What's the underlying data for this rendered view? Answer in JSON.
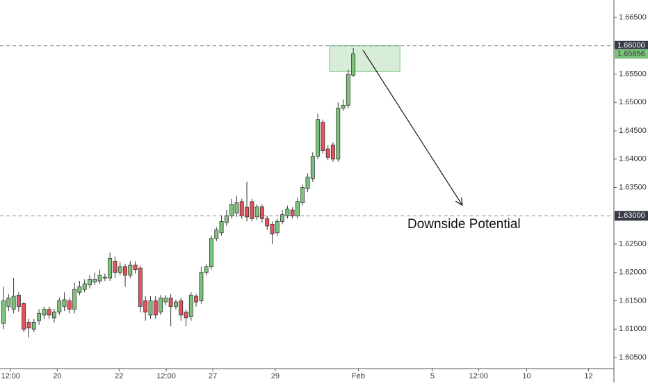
{
  "chart_data": {
    "type": "candlestick",
    "x": [
      0,
      1,
      2,
      3,
      4,
      5,
      6,
      7,
      8,
      9,
      10,
      11,
      12,
      13,
      14,
      15,
      16,
      17,
      18,
      19,
      20,
      21,
      22,
      23,
      24,
      25,
      26,
      27,
      28,
      29,
      30,
      31,
      32,
      33,
      34,
      35,
      36,
      37,
      38,
      39,
      40,
      41,
      42,
      43,
      44,
      45,
      46,
      47,
      48,
      49,
      50,
      51,
      52,
      53,
      54,
      55,
      56,
      57,
      58,
      59,
      60,
      61,
      62,
      63,
      64,
      65,
      66,
      67,
      68,
      69
    ],
    "open": [
      1.611,
      1.614,
      1.6135,
      1.616,
      1.6145,
      1.6112,
      1.61,
      1.6115,
      1.6125,
      1.6135,
      1.612,
      1.613,
      1.614,
      1.615,
      1.6135,
      1.6165,
      1.617,
      1.6178,
      1.6183,
      1.6185,
      1.619,
      1.619,
      1.622,
      1.62,
      1.621,
      1.6195,
      1.6213,
      1.6208,
      1.615,
      1.6125,
      1.615,
      1.613,
      1.6148,
      1.6155,
      1.614,
      1.615,
      1.613,
      1.6122,
      1.6158,
      1.615,
      1.62,
      1.621,
      1.626,
      1.627,
      1.6288,
      1.63,
      1.6305,
      1.6325,
      1.6315,
      1.6325,
      1.6298,
      1.6316,
      1.6295,
      1.6285,
      1.627,
      1.629,
      1.63,
      1.631,
      1.63,
      1.6323,
      1.6348,
      1.6366,
      1.6405,
      1.6465,
      1.6418,
      1.6425,
      1.64,
      1.649,
      1.6495,
      1.6548
    ],
    "high": [
      1.6175,
      1.6162,
      1.619,
      1.6165,
      1.6148,
      1.6118,
      1.6118,
      1.6135,
      1.614,
      1.614,
      1.6136,
      1.6156,
      1.6165,
      1.6155,
      1.6182,
      1.6185,
      1.6188,
      1.6195,
      1.62,
      1.6205,
      1.6198,
      1.6235,
      1.6228,
      1.6218,
      1.6215,
      1.622,
      1.622,
      1.6212,
      1.6158,
      1.6158,
      1.6158,
      1.616,
      1.616,
      1.6162,
      1.6152,
      1.6155,
      1.6135,
      1.6165,
      1.6162,
      1.621,
      1.6215,
      1.6265,
      1.628,
      1.63,
      1.631,
      1.633,
      1.6335,
      1.633,
      1.636,
      1.633,
      1.632,
      1.632,
      1.63,
      1.629,
      1.6295,
      1.631,
      1.6318,
      1.6315,
      1.6332,
      1.6355,
      1.6375,
      1.6412,
      1.648,
      1.647,
      1.6425,
      1.643,
      1.65,
      1.6505,
      1.6558,
      1.6596
    ],
    "low": [
      1.61,
      1.6132,
      1.6128,
      1.613,
      1.6095,
      1.6085,
      1.6095,
      1.6108,
      1.6118,
      1.6118,
      1.6112,
      1.6125,
      1.6132,
      1.6128,
      1.6128,
      1.616,
      1.6165,
      1.6172,
      1.6178,
      1.618,
      1.6185,
      1.6185,
      1.619,
      1.6195,
      1.6175,
      1.619,
      1.6198,
      1.613,
      1.6115,
      1.6118,
      1.6118,
      1.6125,
      1.6142,
      1.6105,
      1.6135,
      1.6115,
      1.6105,
      1.6115,
      1.614,
      1.6145,
      1.6195,
      1.6205,
      1.6255,
      1.6265,
      1.6282,
      1.6295,
      1.6298,
      1.6295,
      1.629,
      1.629,
      1.6292,
      1.6288,
      1.6275,
      1.625,
      1.6265,
      1.6285,
      1.6295,
      1.6295,
      1.6295,
      1.6318,
      1.6342,
      1.636,
      1.64,
      1.641,
      1.6398,
      1.6395,
      1.6395,
      1.6485,
      1.649,
      1.6545
    ],
    "close": [
      1.615,
      1.6155,
      1.6158,
      1.614,
      1.61,
      1.6102,
      1.6112,
      1.6128,
      1.6135,
      1.6125,
      1.613,
      1.615,
      1.6152,
      1.6135,
      1.617,
      1.6175,
      1.618,
      1.6188,
      1.6188,
      1.6195,
      1.6192,
      1.6225,
      1.62,
      1.621,
      1.6195,
      1.6213,
      1.6205,
      1.614,
      1.613,
      1.615,
      1.6125,
      1.6155,
      1.6155,
      1.614,
      1.6148,
      1.6125,
      1.612,
      1.616,
      1.6148,
      1.62,
      1.621,
      1.626,
      1.6275,
      1.629,
      1.63,
      1.632,
      1.6323,
      1.63,
      1.6298,
      1.6295,
      1.6316,
      1.6295,
      1.6282,
      1.6268,
      1.629,
      1.6302,
      1.6312,
      1.63,
      1.6325,
      1.635,
      1.6368,
      1.6405,
      1.647,
      1.6415,
      1.6403,
      1.64,
      1.649,
      1.6495,
      1.655,
      1.65856
    ],
    "up_color": "#7cc47c",
    "down_color": "#e4535a",
    "xlim": [
      -0.69,
      120.0
    ],
    "ylim": [
      1.60304,
      1.66807
    ],
    "xticks": [
      {
        "value": 1.4,
        "label": "12:00"
      },
      {
        "value": 10.6,
        "label": "20"
      },
      {
        "value": 22.8,
        "label": "22"
      },
      {
        "value": 32.1,
        "label": "12:00"
      },
      {
        "value": 41.3,
        "label": "27"
      },
      {
        "value": 53.6,
        "label": "29"
      },
      {
        "value": 70.0,
        "label": "Feb"
      },
      {
        "value": 84.6,
        "label": "5"
      },
      {
        "value": 93.7,
        "label": "12:00"
      },
      {
        "value": 103.2,
        "label": "10"
      },
      {
        "value": 115.4,
        "label": "12"
      }
    ],
    "yticks": [
      {
        "value": 1.665,
        "label": "1.66500"
      },
      {
        "value": 1.655,
        "label": "1.65500"
      },
      {
        "value": 1.65,
        "label": "1.65000"
      },
      {
        "value": 1.645,
        "label": "1.64500"
      },
      {
        "value": 1.64,
        "label": "1.64000"
      },
      {
        "value": 1.635,
        "label": "1.63500"
      },
      {
        "value": 1.625,
        "label": "1.62500"
      },
      {
        "value": 1.62,
        "label": "1.62000"
      },
      {
        "value": 1.615,
        "label": "1.61500"
      },
      {
        "value": 1.61,
        "label": "1.61000"
      },
      {
        "value": 1.605,
        "label": "1.60500"
      }
    ],
    "levels": [
      {
        "value": 1.66,
        "label": "1.66000"
      },
      {
        "value": 1.63,
        "label": "1.63000"
      }
    ],
    "last_price": {
      "value": 1.65856,
      "label": "1.65856"
    },
    "zone": {
      "x": [
        64.3,
        78.2
      ],
      "y": [
        1.6555,
        1.66
      ]
    },
    "arrow": {
      "x": [
        70.9,
        90.5
      ],
      "y": [
        1.65923,
        1.63187
      ]
    },
    "annotation": "Downside Potential"
  }
}
